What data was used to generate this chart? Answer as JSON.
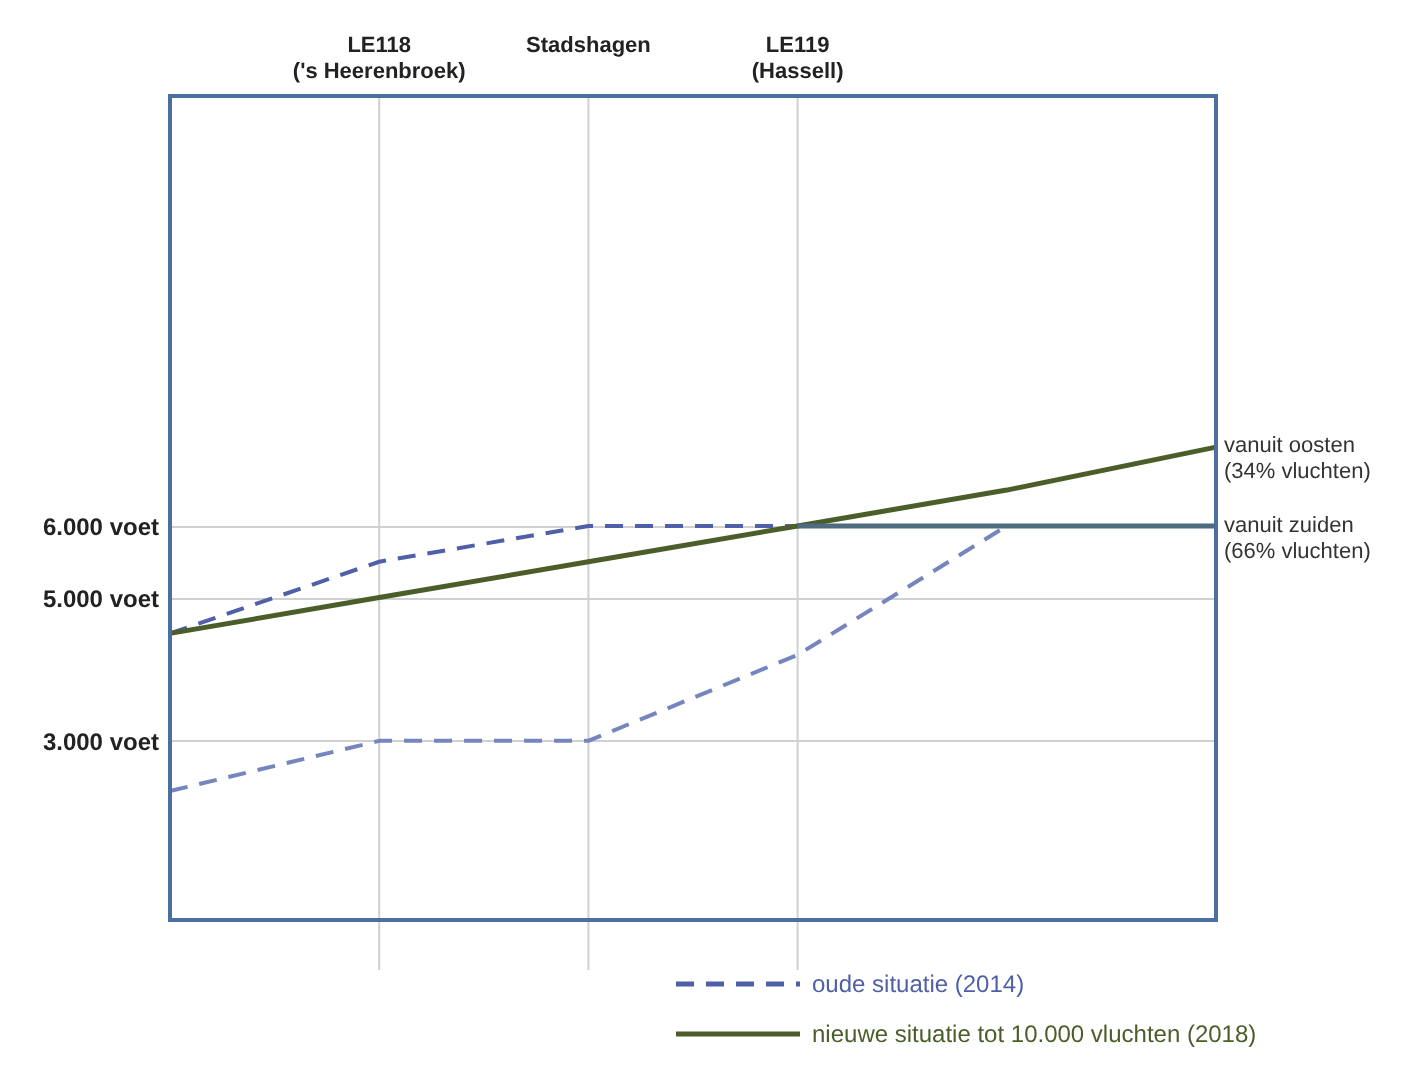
{
  "chart_data": {
    "type": "line",
    "categories": [
      null,
      "LE118\n('s Heerenbroek)",
      "Stadshagen",
      "LE119\n(Hassell)",
      null,
      null
    ],
    "ylim": [
      500,
      12000
    ],
    "yticks": [
      {
        "value": 3000,
        "label": "3.000 voet"
      },
      {
        "value": 5000,
        "label": "5.000 voet"
      },
      {
        "value": 6000,
        "label": "6.000 voet"
      }
    ],
    "series": [
      {
        "name": "oude situatie (2014)",
        "color": "#4f5fa8",
        "line_style": "dashed",
        "values": [
          4500,
          5500,
          6000,
          6000,
          6000,
          6000
        ]
      },
      {
        "color": "#7585bd",
        "line_style": "dashed",
        "values": [
          2300,
          3000,
          3000,
          4200,
          6000,
          6000
        ]
      },
      {
        "name": "nieuwe situatie tot 10.000 vluchten (2018)",
        "color": "#4b5e2a",
        "line_style": "solid",
        "values": [
          4500,
          5000,
          5500,
          6000,
          6500,
          7100
        ]
      },
      {
        "color": "#4e6b80",
        "line_style": "solid",
        "values": [
          null,
          null,
          null,
          6000,
          6000,
          6000
        ]
      }
    ],
    "annotations": [
      "vanuit oosten\n(34% vluchten)",
      "vanuit zuiden\n(66% vluchten)"
    ],
    "grid": true,
    "legend": "bottom right",
    "marker": "none"
  }
}
